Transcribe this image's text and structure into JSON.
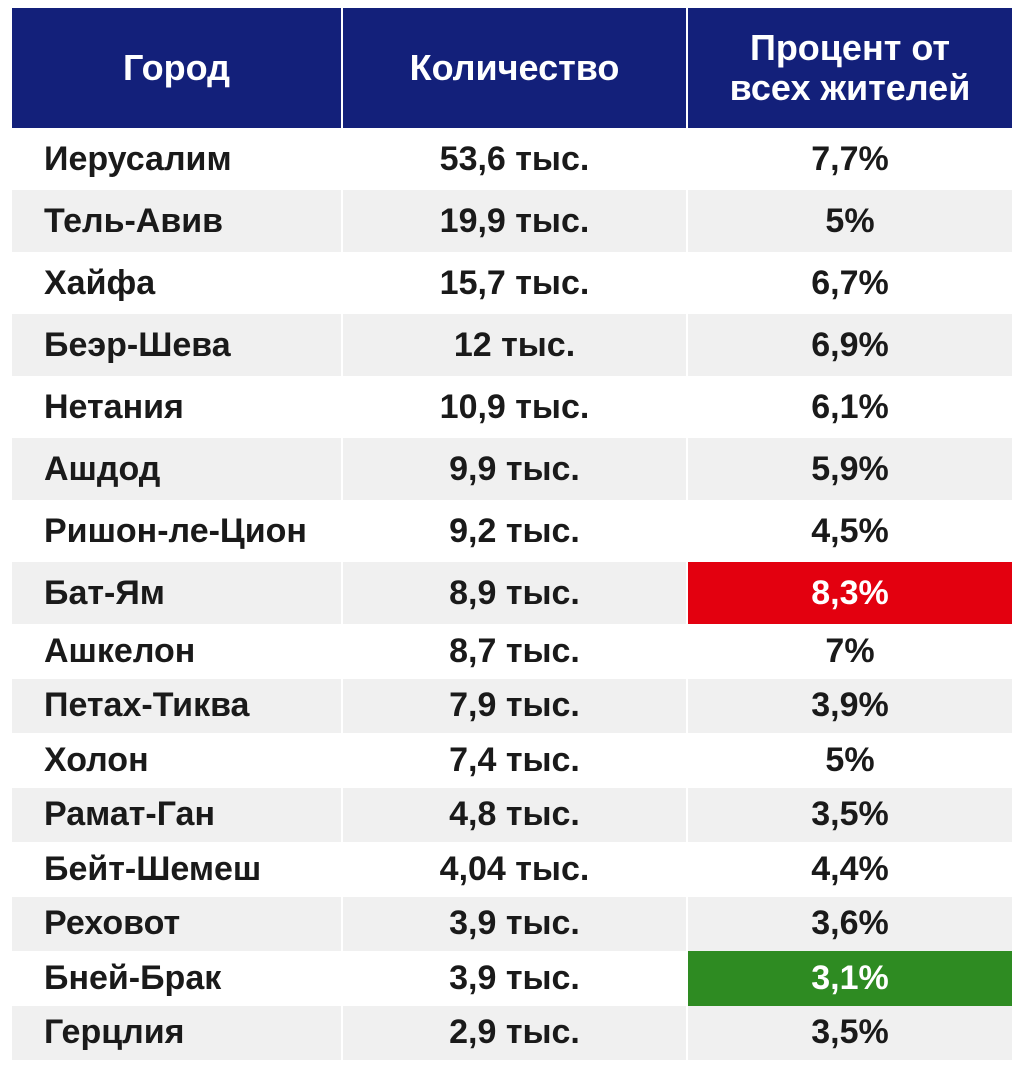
{
  "table": {
    "header": [
      "Город",
      "Количество",
      "Процент от всех жителей"
    ],
    "rows": [
      [
        "Иерусалим",
        "53,6 тыс.",
        "7,7%"
      ],
      [
        "Тель-Авив",
        "19,9 тыс.",
        "5%"
      ],
      [
        "Хайфа",
        "15,7 тыс.",
        "6,7%"
      ],
      [
        "Беэр-Шева",
        "12 тыс.",
        "6,9%"
      ],
      [
        "Нетания",
        "10,9 тыс.",
        "6,1%"
      ],
      [
        "Ашдод",
        "9,9 тыс.",
        "5,9%"
      ],
      [
        "Ришон-ле-Цион",
        "9,2 тыс.",
        "4,5%"
      ],
      [
        "Бат-Ям",
        "8,9 тыс.",
        "8,3%"
      ],
      [
        "Ашкелон",
        "8,7 тыс.",
        "7%"
      ],
      [
        "Петах-Тиква",
        "7,9 тыс.",
        "3,9%"
      ],
      [
        "Холон",
        "7,4 тыс.",
        "5%"
      ],
      [
        "Рамат-Ган",
        "4,8 тыс.",
        "3,5%"
      ],
      [
        "Бейт-Шемеш",
        "4,04 тыс.",
        "4,4%"
      ],
      [
        "Реховот",
        "3,9 тыс.",
        "3,6%"
      ],
      [
        "Бней-Брак",
        "3,9 тыс.",
        "3,1%"
      ],
      [
        "Герцлия",
        "2,9 тыс.",
        "3,5%"
      ]
    ]
  }
}
